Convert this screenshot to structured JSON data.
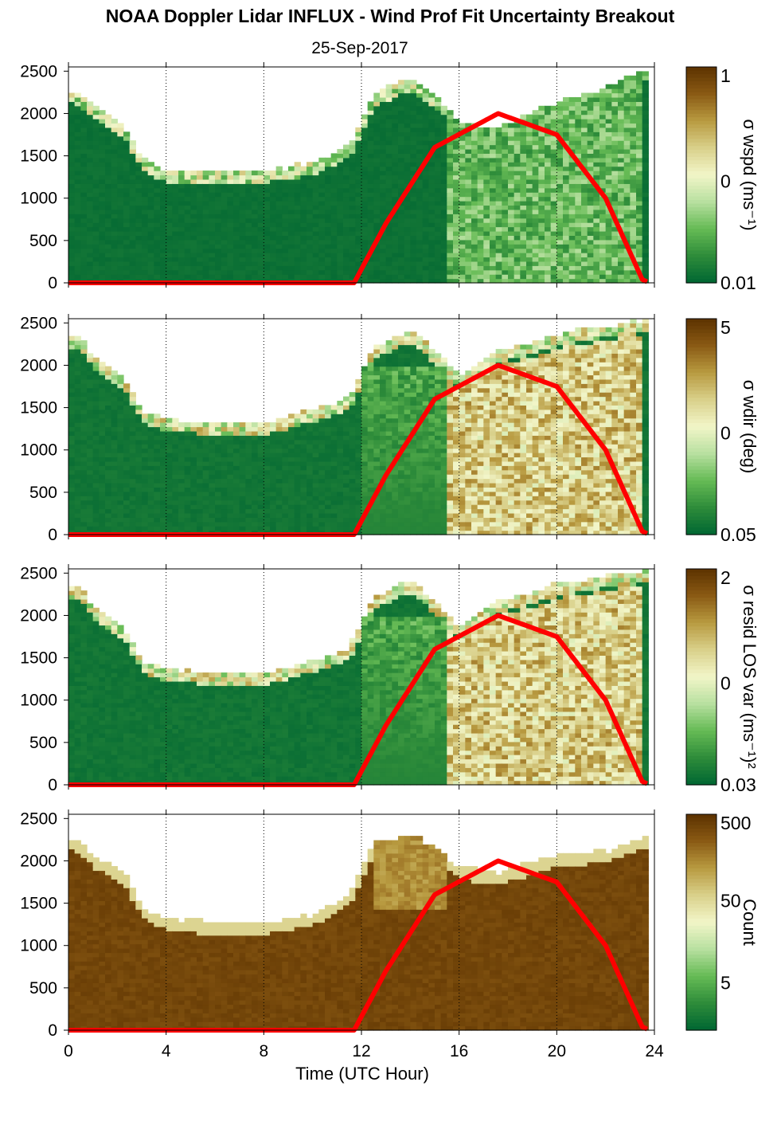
{
  "figure": {
    "title": "NOAA Doppler Lidar INFLUX - Wind Prof Fit Uncertainty Breakout",
    "subtitle": "25-Sep-2017",
    "xlabel": "Time (UTC Hour)",
    "x_ticks": [
      "0",
      "4",
      "8",
      "12",
      "16",
      "20",
      "24"
    ],
    "y_ticks": [
      "0",
      "500",
      "1000",
      "1500",
      "2000",
      "2500"
    ]
  },
  "colors": {
    "colormap": [
      "#006633",
      "#2e8c3a",
      "#66bb55",
      "#b8e0a0",
      "#f2f5c8",
      "#d9d08a",
      "#b89a40",
      "#8a5a14",
      "#5c3200"
    ],
    "overlay_line": "#ff0000",
    "grid": "#000000"
  },
  "chart_data": [
    {
      "type": "heatmap",
      "colorbar_label": "σ wspd (ms⁻¹)",
      "colorbar_ticks": [
        "1",
        "0",
        "0.01"
      ],
      "xlim": [
        0,
        24
      ],
      "ylim": [
        0,
        2550
      ],
      "overlay_line": {
        "x": [
          0,
          11.7,
          13,
          15,
          17.6,
          20,
          22,
          23.5,
          23.8
        ],
        "y": [
          0,
          0,
          700,
          1600,
          2000,
          1750,
          1000,
          40,
          0
        ]
      },
      "cloud_base_envelope": {
        "x": [
          0,
          0.5,
          1,
          2,
          2.5,
          3,
          4,
          6,
          8,
          10,
          11.5,
          12.5,
          14,
          15,
          16,
          17.5,
          19,
          20,
          22,
          23.5
        ],
        "y": [
          2250,
          2200,
          2100,
          1900,
          1750,
          1450,
          1300,
          1300,
          1300,
          1400,
          1600,
          2200,
          2400,
          2200,
          1900,
          1800,
          2000,
          2100,
          2300,
          2500
        ]
      }
    },
    {
      "type": "heatmap",
      "colorbar_label": "σ wdir (deg)",
      "colorbar_ticks": [
        "5",
        "0",
        "0.05"
      ],
      "xlim": [
        0,
        24
      ],
      "ylim": [
        0,
        2550
      ],
      "overlay_line": {
        "x": [
          0,
          11.7,
          13,
          15,
          17.6,
          20,
          22,
          23.5,
          23.8
        ],
        "y": [
          0,
          0,
          700,
          1600,
          2000,
          1750,
          1000,
          40,
          0
        ]
      },
      "cloud_base_envelope": {
        "x": [
          0,
          0.5,
          1,
          2,
          2.5,
          3,
          4,
          6,
          8,
          10,
          11.5,
          12.5,
          14,
          15,
          16,
          17.5,
          19,
          20,
          22,
          23.5
        ],
        "y": [
          2350,
          2300,
          2100,
          1900,
          1750,
          1450,
          1350,
          1300,
          1300,
          1450,
          1600,
          2200,
          2400,
          2150,
          1850,
          2150,
          2250,
          2350,
          2450,
          2500
        ]
      }
    },
    {
      "type": "heatmap",
      "colorbar_label": "σ resid LOS var (ms⁻¹)²",
      "colorbar_ticks": [
        "2",
        "0",
        "0.03"
      ],
      "xlim": [
        0,
        24
      ],
      "ylim": [
        0,
        2550
      ],
      "overlay_line": {
        "x": [
          0,
          11.7,
          13,
          15,
          17.6,
          20,
          22,
          23.5,
          23.8
        ],
        "y": [
          0,
          0,
          700,
          1600,
          2000,
          1750,
          1000,
          40,
          0
        ]
      },
      "cloud_base_envelope": {
        "x": [
          0,
          0.5,
          1,
          2,
          2.5,
          3,
          4,
          6,
          8,
          10,
          11.5,
          12.5,
          14,
          15,
          16,
          17.5,
          19,
          20,
          22,
          23.5
        ],
        "y": [
          2350,
          2300,
          2100,
          1900,
          1750,
          1450,
          1350,
          1300,
          1300,
          1450,
          1600,
          2200,
          2400,
          2150,
          1850,
          2150,
          2250,
          2350,
          2450,
          2500
        ]
      }
    },
    {
      "type": "heatmap",
      "colorbar_label": "Count",
      "colorbar_ticks": [
        "500",
        "50",
        "5"
      ],
      "xlim": [
        0,
        24
      ],
      "ylim": [
        0,
        2550
      ],
      "overlay_line": {
        "x": [
          0,
          11.7,
          13,
          15,
          17.6,
          20,
          22,
          23.5,
          23.8
        ],
        "y": [
          0,
          0,
          700,
          1600,
          2000,
          1750,
          1000,
          40,
          0
        ]
      },
      "cloud_base_envelope": {
        "x": [
          0,
          0.5,
          1,
          2,
          2.5,
          3,
          4,
          6,
          8,
          10,
          11.5,
          12.5,
          14,
          15,
          16,
          17.5,
          19,
          20,
          22,
          23.5
        ],
        "y": [
          2250,
          2200,
          2050,
          1900,
          1750,
          1450,
          1300,
          1250,
          1250,
          1350,
          1600,
          2200,
          2300,
          2150,
          1900,
          1850,
          1950,
          2050,
          2100,
          2250
        ]
      }
    }
  ]
}
